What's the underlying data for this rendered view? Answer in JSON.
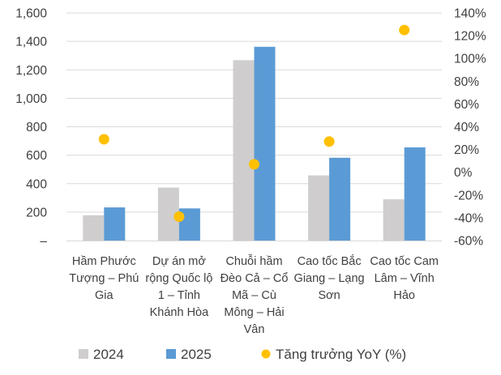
{
  "chart_data": {
    "type": "bar",
    "categories": [
      [
        "Hầm Phước",
        "Tượng – Phú",
        "Gia"
      ],
      [
        "Dự án mở",
        "rộng Quốc lộ",
        "1 – Tỉnh",
        "Khánh Hòa"
      ],
      [
        "Chuỗi hầm",
        "Đèo Cả – Cổ",
        "Mã – Cù",
        "Mông – Hải",
        "Vân"
      ],
      [
        "Cao tốc Bắc",
        "Giang – Lạng",
        "Sơn"
      ],
      [
        "Cao tốc Cam",
        "Lâm – Vĩnh",
        "Hảo"
      ]
    ],
    "series": [
      {
        "name": "2024",
        "type": "bar",
        "axis": "left",
        "color": "#cfcdcd",
        "values": [
          178,
          372,
          1268,
          458,
          290
        ]
      },
      {
        "name": "2025",
        "type": "bar",
        "axis": "left",
        "color": "#5b9bd5",
        "values": [
          233,
          226,
          1362,
          582,
          655
        ]
      },
      {
        "name": "Tăng trưởng YoY (%)",
        "type": "scatter",
        "axis": "right",
        "color": "#ffc000",
        "values": [
          29,
          -39,
          7,
          27,
          125
        ]
      }
    ],
    "y_left": {
      "ylim": [
        0,
        1600
      ],
      "ticks": [
        0,
        200,
        400,
        600,
        800,
        1000,
        1200,
        1400,
        1600
      ],
      "tick_labels": [
        "–",
        "200",
        "400",
        "600",
        "800",
        "1,000",
        "1,200",
        "1,400",
        "1,600"
      ]
    },
    "y_right": {
      "ylim": [
        -60,
        140
      ],
      "ticks": [
        -60,
        -40,
        -20,
        0,
        20,
        40,
        60,
        80,
        100,
        120,
        140
      ],
      "tick_labels": [
        "-60%",
        "-40%",
        "-20%",
        "0%",
        "20%",
        "40%",
        "60%",
        "80%",
        "100%",
        "120%",
        "140%"
      ]
    },
    "grid": true,
    "legend_position": "bottom"
  }
}
